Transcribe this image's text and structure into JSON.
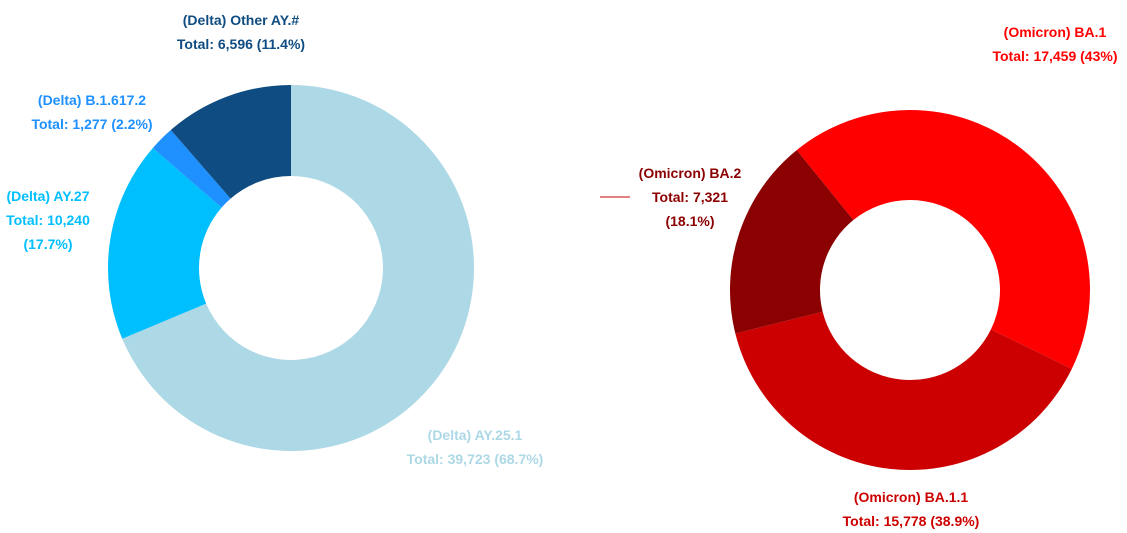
{
  "chart_data": [
    {
      "type": "donut",
      "categories": [
        "(Delta) AY.25.1",
        "(Delta) AY.27",
        "(Delta) B.1.617.2",
        "(Delta) Other AY.#"
      ],
      "values": [
        39723,
        10240,
        1277,
        6596
      ],
      "value_labels": [
        "Total: 39,723 (68.7%)",
        "Total: 10,240 (17.7%)",
        "Total: 1,277 (2.2%)",
        "Total: 6,596 (11.4%)"
      ],
      "colors": [
        "#add8e6",
        "#00bfff",
        "#1e90ff",
        "#0f4c81"
      ]
    },
    {
      "type": "donut",
      "categories": [
        "(Omicron) BA.1",
        "(Omicron) BA.1.1",
        "(Omicron) BA.2"
      ],
      "values": [
        17459,
        15778,
        7321
      ],
      "value_labels": [
        "Total: 17,459 (43%)",
        "Total: 15,778 (38.9%)",
        "Total: 7,321 (18.1%)"
      ],
      "colors": [
        "#ff0000",
        "#cc0000",
        "#8b0000"
      ]
    }
  ]
}
